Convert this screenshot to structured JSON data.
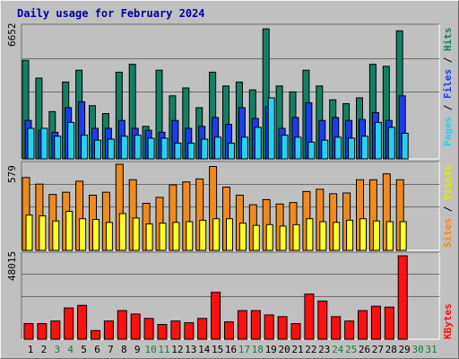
{
  "title": "Daily usage for February 2024",
  "colors": {
    "background": "#c0c0c0",
    "hits": "#128064",
    "files": "#1c3cf0",
    "pages": "#28d0f0",
    "visits": "#f08a1c",
    "sites": "#ffff2c",
    "kbytes": "#ff1010",
    "title": "#0000a0",
    "weekday_label": "#000000",
    "weekend_label": "#0f8040"
  },
  "chart_data": [
    {
      "type": "bar",
      "name": "hits-files-pages",
      "y_max_label": "6652",
      "ylim": [
        0,
        6652
      ],
      "side_label_parts": [
        "Pages",
        "Files",
        "Hits"
      ],
      "categories": [
        "1",
        "2",
        "3",
        "4",
        "5",
        "6",
        "7",
        "8",
        "9",
        "10",
        "11",
        "12",
        "13",
        "14",
        "15",
        "16",
        "17",
        "18",
        "19",
        "20",
        "21",
        "22",
        "23",
        "24",
        "25",
        "26",
        "27",
        "28",
        "29"
      ],
      "series": [
        {
          "name": "Hits",
          "values": [
            5000,
            4100,
            2400,
            3900,
            4500,
            2700,
            2300,
            4400,
            4800,
            1650,
            4500,
            3200,
            3600,
            2600,
            4400,
            3700,
            3900,
            3500,
            6600,
            3700,
            3400,
            4500,
            3700,
            3000,
            2800,
            3100,
            4800,
            4700,
            6500
          ]
        },
        {
          "name": "Files",
          "values": [
            1950,
            1450,
            1350,
            2600,
            2900,
            1550,
            1550,
            1950,
            1550,
            1450,
            1350,
            1950,
            1550,
            1650,
            2100,
            1750,
            2600,
            2050,
            2650,
            1550,
            2100,
            2850,
            1950,
            2100,
            1950,
            2000,
            2350,
            1950,
            3200
          ]
        },
        {
          "name": "Pages",
          "values": [
            1550,
            1550,
            1150,
            1850,
            1200,
            950,
            1000,
            1150,
            1200,
            1050,
            1050,
            800,
            800,
            1000,
            1100,
            800,
            1100,
            1600,
            3100,
            1200,
            1100,
            850,
            950,
            1100,
            1050,
            1150,
            1850,
            1600,
            1300
          ]
        }
      ],
      "extra_series": [
        {
          "name": "Files",
          "day": "29",
          "value": 2100
        },
        {
          "name": "Pages",
          "day": "29",
          "value": 720
        }
      ]
    },
    {
      "type": "bar",
      "name": "visits-sites",
      "y_max_label": "579",
      "ylim": [
        0,
        579
      ],
      "side_label_parts": [
        "Sites",
        "Visits"
      ],
      "categories": [
        "1",
        "2",
        "3",
        "4",
        "5",
        "6",
        "7",
        "8",
        "9",
        "10",
        "11",
        "12",
        "13",
        "14",
        "15",
        "16",
        "17",
        "18",
        "19",
        "20",
        "21",
        "22",
        "23",
        "24",
        "25",
        "26",
        "27",
        "28",
        "29"
      ],
      "series": [
        {
          "name": "Visits",
          "values": [
            495,
            450,
            380,
            395,
            470,
            375,
            395,
            585,
            480,
            320,
            360,
            445,
            465,
            485,
            570,
            430,
            375,
            310,
            345,
            315,
            325,
            400,
            415,
            385,
            390,
            480,
            480,
            520,
            480
          ]
        },
        {
          "name": "Sites",
          "values": [
            240,
            235,
            200,
            265,
            215,
            210,
            190,
            250,
            220,
            180,
            185,
            190,
            195,
            205,
            215,
            215,
            185,
            170,
            175,
            165,
            175,
            215,
            195,
            190,
            205,
            215,
            200,
            195,
            195
          ]
        }
      ]
    },
    {
      "type": "bar",
      "name": "kbytes",
      "y_max_label": "48015",
      "ylim": [
        0,
        48015
      ],
      "side_label_parts": [
        "KBytes"
      ],
      "categories": [
        "1",
        "2",
        "3",
        "4",
        "5",
        "6",
        "7",
        "8",
        "9",
        "10",
        "11",
        "12",
        "13",
        "14",
        "15",
        "16",
        "17",
        "18",
        "19",
        "20",
        "21",
        "22",
        "23",
        "24",
        "25",
        "26",
        "27",
        "28",
        "29"
      ],
      "series": [
        {
          "name": "KBytes",
          "values": [
            9000,
            9000,
            10500,
            18000,
            19500,
            5000,
            10500,
            16500,
            14500,
            12000,
            8500,
            10500,
            9500,
            12000,
            27000,
            10000,
            16500,
            16500,
            14000,
            13000,
            9000,
            26000,
            22000,
            13000,
            10500,
            16500,
            19000,
            18500,
            48015
          ]
        }
      ]
    }
  ],
  "day_labels": [
    "1",
    "2",
    "3",
    "4",
    "5",
    "6",
    "7",
    "8",
    "9",
    "10",
    "11",
    "12",
    "13",
    "14",
    "15",
    "16",
    "17",
    "18",
    "19",
    "20",
    "21",
    "22",
    "23",
    "24",
    "25",
    "26",
    "27",
    "28",
    "29",
    "30",
    "31"
  ],
  "weekend_days": [
    "3",
    "4",
    "10",
    "11",
    "17",
    "18",
    "24",
    "25",
    "30",
    "31"
  ]
}
